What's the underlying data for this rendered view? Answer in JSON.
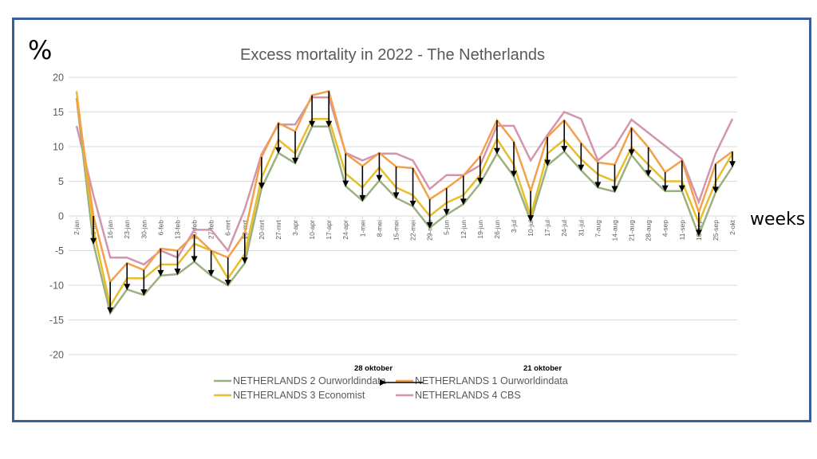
{
  "chart_data": {
    "type": "line",
    "title": "Excess mortality in 2022 - The Netherlands",
    "ylabel": "%",
    "xlabel": "weeks",
    "ylim": [
      -20,
      20
    ],
    "yticks": [
      20,
      15,
      10,
      5,
      0,
      -5,
      -10,
      -15,
      -20
    ],
    "grid": true,
    "legend_position": "bottom",
    "categories": [
      "2-jan",
      "9-jan",
      "16-jan",
      "23-jan",
      "30-jan",
      "6-feb",
      "13-feb",
      "20-feb",
      "27-feb",
      "6-mrt",
      "13-mrt",
      "20-mrt",
      "27-mrt",
      "3-apr",
      "10-apr",
      "17-apr",
      "24-apr",
      "1-mei",
      "8-mei",
      "15-mei",
      "22-mei",
      "29-mei",
      "5-jun",
      "12-jun",
      "19-jun",
      "26-jun",
      "3-jul",
      "10-jul",
      "17-jul",
      "24-jul",
      "31-jul",
      "7-aug",
      "14-aug",
      "21-aug",
      "28-aug",
      "4-sep",
      "11-sep",
      "18-sep",
      "25-sep",
      "2-okt"
    ],
    "series": [
      {
        "name": "NETHERLANDS 2 Ourworldindata",
        "color": "#9bb07f",
        "values": [
          17,
          -4,
          -14,
          -10.6,
          -11.4,
          -8.6,
          -8.4,
          -6.6,
          -8.6,
          -10,
          -6.8,
          4,
          9.1,
          7.6,
          12.9,
          12.9,
          4.3,
          2.2,
          5.1,
          2.6,
          1.4,
          -1.7,
          0.2,
          1.7,
          4.7,
          9,
          5.7,
          -0.7,
          7.3,
          9.3,
          6.6,
          4.1,
          3.5,
          8.8,
          5.8,
          3.6,
          3.6,
          -2.8,
          3.4,
          7.1
        ]
      },
      {
        "name": "NETHERLANDS 1 Ourworldindata",
        "color": "#f4a04a",
        "values": [
          17,
          0,
          -9.5,
          -6.8,
          -7.8,
          -4.7,
          -5,
          -2.7,
          -5,
          -6,
          -2.5,
          8.5,
          13.4,
          12.2,
          17.4,
          18,
          9,
          7.2,
          9.1,
          7.1,
          6.9,
          2.4,
          4,
          5.8,
          8.6,
          13.8,
          10.7,
          3.6,
          11.4,
          13.8,
          10.5,
          7.7,
          7.4,
          12.7,
          9.9,
          6.3,
          8,
          0.5,
          7.5,
          9.3
        ]
      },
      {
        "name": "NETHERLANDS 3 Economist",
        "color": "#e8bd2a",
        "values": [
          18,
          -2,
          -13,
          -9,
          -9,
          -7,
          -7,
          -4,
          -5,
          -9,
          -5.5,
          5.5,
          11,
          9,
          14,
          14,
          6.1,
          4.1,
          7,
          4.1,
          3,
          0,
          1.9,
          3,
          5.9,
          11.1,
          7.4,
          0,
          9,
          11,
          8.2,
          6,
          5,
          9.9,
          7.4,
          5,
          5,
          -1,
          4.9,
          9
        ]
      },
      {
        "name": "NETHERLANDS 4 CBS",
        "color": "#d295ad",
        "values": [
          13,
          3,
          -6,
          -6,
          -7,
          -5,
          -6,
          -2,
          -2,
          -5,
          1,
          8.9,
          13.2,
          13.2,
          17.1,
          17.1,
          9.1,
          8,
          9,
          9,
          8,
          3.9,
          5.9,
          5.9,
          7.3,
          13,
          13,
          8,
          11.7,
          15,
          14,
          8,
          10,
          13.9,
          12,
          10.1,
          8.2,
          2,
          9,
          14
        ]
      }
    ],
    "arrows": {
      "from_series": "NETHERLANDS 1 Ourworldindata",
      "to_series": "NETHERLANDS 2 Ourworldindata",
      "color": "#000000"
    },
    "annotations": [
      {
        "text": "28 oktober",
        "near_category": "29-mei"
      },
      {
        "text": "21 oktober",
        "near_category": "10-jul"
      }
    ]
  },
  "labels": {
    "percent": "%",
    "weeks": "weeks"
  },
  "colors": {
    "frame": "#3b5f9d",
    "grid": "#d9d9d9",
    "axis_text": "#595959"
  }
}
